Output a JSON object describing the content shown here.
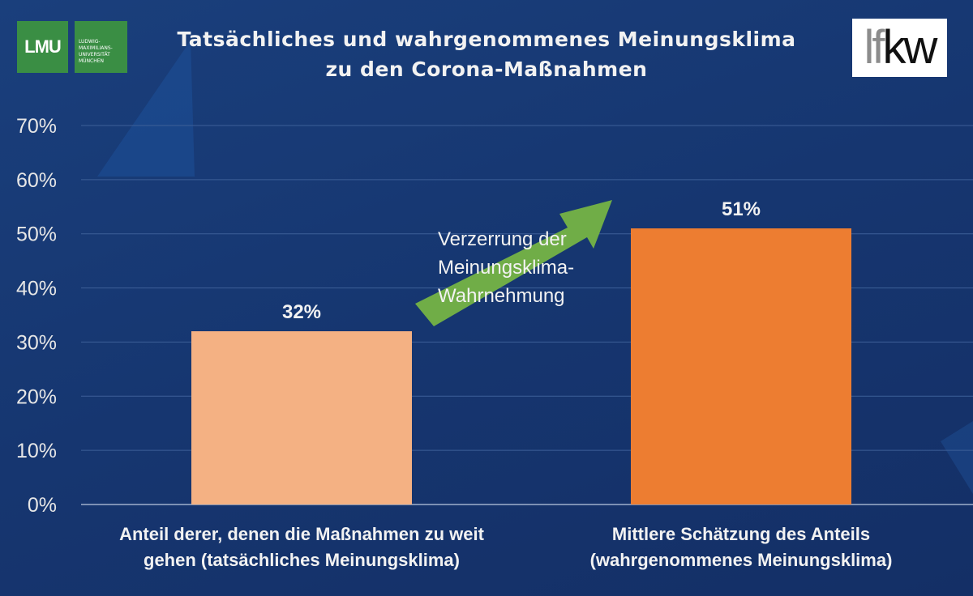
{
  "header": {
    "title_line1": "Tatsächliches und wahrgenommenes Meinungsklima",
    "title_line2": "zu den Corona-Maßnahmen",
    "logo_left": "LMU",
    "logo_left_sub": "LUDWIG-MAXIMILIANS-UNIVERSITÄT MÜNCHEN",
    "logo_right": "IfKW"
  },
  "annotation": {
    "line1": "Verzerrung der",
    "line2": "Meinungsklima-",
    "line3": "Wahrnehmung"
  },
  "chart_data": {
    "type": "bar",
    "title": "Tatsächliches und wahrgenommenes Meinungsklima zu den Corona-Maßnahmen",
    "categories": [
      [
        "Anteil derer, denen die Maßnahmen zu weit",
        "gehen (tatsächliches Meinungsklima)"
      ],
      [
        "Mittlere Schätzung des Anteils",
        "(wahrgenommenes Meinungsklima)"
      ]
    ],
    "values": [
      32,
      51
    ],
    "data_labels": [
      "32%",
      "51%"
    ],
    "colors": [
      "#f4b183",
      "#ed7d31"
    ],
    "ylim": [
      0,
      70
    ],
    "yticks": [
      "0%",
      "10%",
      "20%",
      "30%",
      "40%",
      "50%",
      "60%",
      "70%"
    ],
    "grid": true,
    "xlabel": "",
    "ylabel": ""
  }
}
